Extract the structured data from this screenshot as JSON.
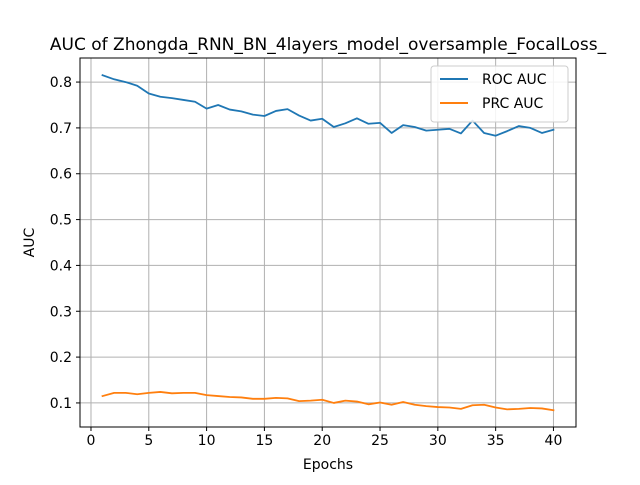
{
  "chart_data": {
    "type": "line",
    "title": "AUC of Zhongda_RNN_BN_4layers_model_oversample_FocalLoss_",
    "xlabel": "Epochs",
    "ylabel": "AUC",
    "xlim": [
      -0.95,
      41.95
    ],
    "ylim": [
      0.0475,
      0.8525
    ],
    "xticks": [
      0,
      5,
      10,
      15,
      20,
      25,
      30,
      35,
      40
    ],
    "xtick_labels": [
      "0",
      "5",
      "10",
      "15",
      "20",
      "25",
      "30",
      "35",
      "40"
    ],
    "yticks": [
      0.1,
      0.2,
      0.3,
      0.4,
      0.5,
      0.6,
      0.7,
      0.8
    ],
    "ytick_labels": [
      "0.1",
      "0.2",
      "0.3",
      "0.4",
      "0.5",
      "0.6",
      "0.7",
      "0.8"
    ],
    "grid": true,
    "legend_position": "top-right",
    "x": [
      1,
      2,
      3,
      4,
      5,
      6,
      7,
      8,
      9,
      10,
      11,
      12,
      13,
      14,
      15,
      16,
      17,
      18,
      19,
      20,
      21,
      22,
      23,
      24,
      25,
      26,
      27,
      28,
      29,
      30,
      31,
      32,
      33,
      34,
      35,
      36,
      37,
      38,
      39,
      40
    ],
    "series": [
      {
        "name": "ROC AUC",
        "color": "#1f77b4",
        "values": [
          0.815,
          0.806,
          0.8,
          0.792,
          0.775,
          0.768,
          0.765,
          0.761,
          0.757,
          0.742,
          0.75,
          0.74,
          0.736,
          0.729,
          0.726,
          0.737,
          0.741,
          0.727,
          0.716,
          0.72,
          0.702,
          0.71,
          0.721,
          0.709,
          0.711,
          0.689,
          0.706,
          0.702,
          0.694,
          0.696,
          0.698,
          0.688,
          0.716,
          0.689,
          0.683,
          0.693,
          0.704,
          0.7,
          0.689,
          0.696
        ]
      },
      {
        "name": "PRC AUC",
        "color": "#ff7f0e",
        "values": [
          0.115,
          0.122,
          0.122,
          0.119,
          0.122,
          0.124,
          0.121,
          0.122,
          0.122,
          0.117,
          0.115,
          0.113,
          0.112,
          0.109,
          0.109,
          0.111,
          0.11,
          0.104,
          0.105,
          0.107,
          0.1,
          0.105,
          0.103,
          0.097,
          0.101,
          0.096,
          0.102,
          0.096,
          0.093,
          0.091,
          0.09,
          0.087,
          0.095,
          0.096,
          0.09,
          0.086,
          0.087,
          0.089,
          0.088,
          0.084
        ]
      }
    ]
  }
}
